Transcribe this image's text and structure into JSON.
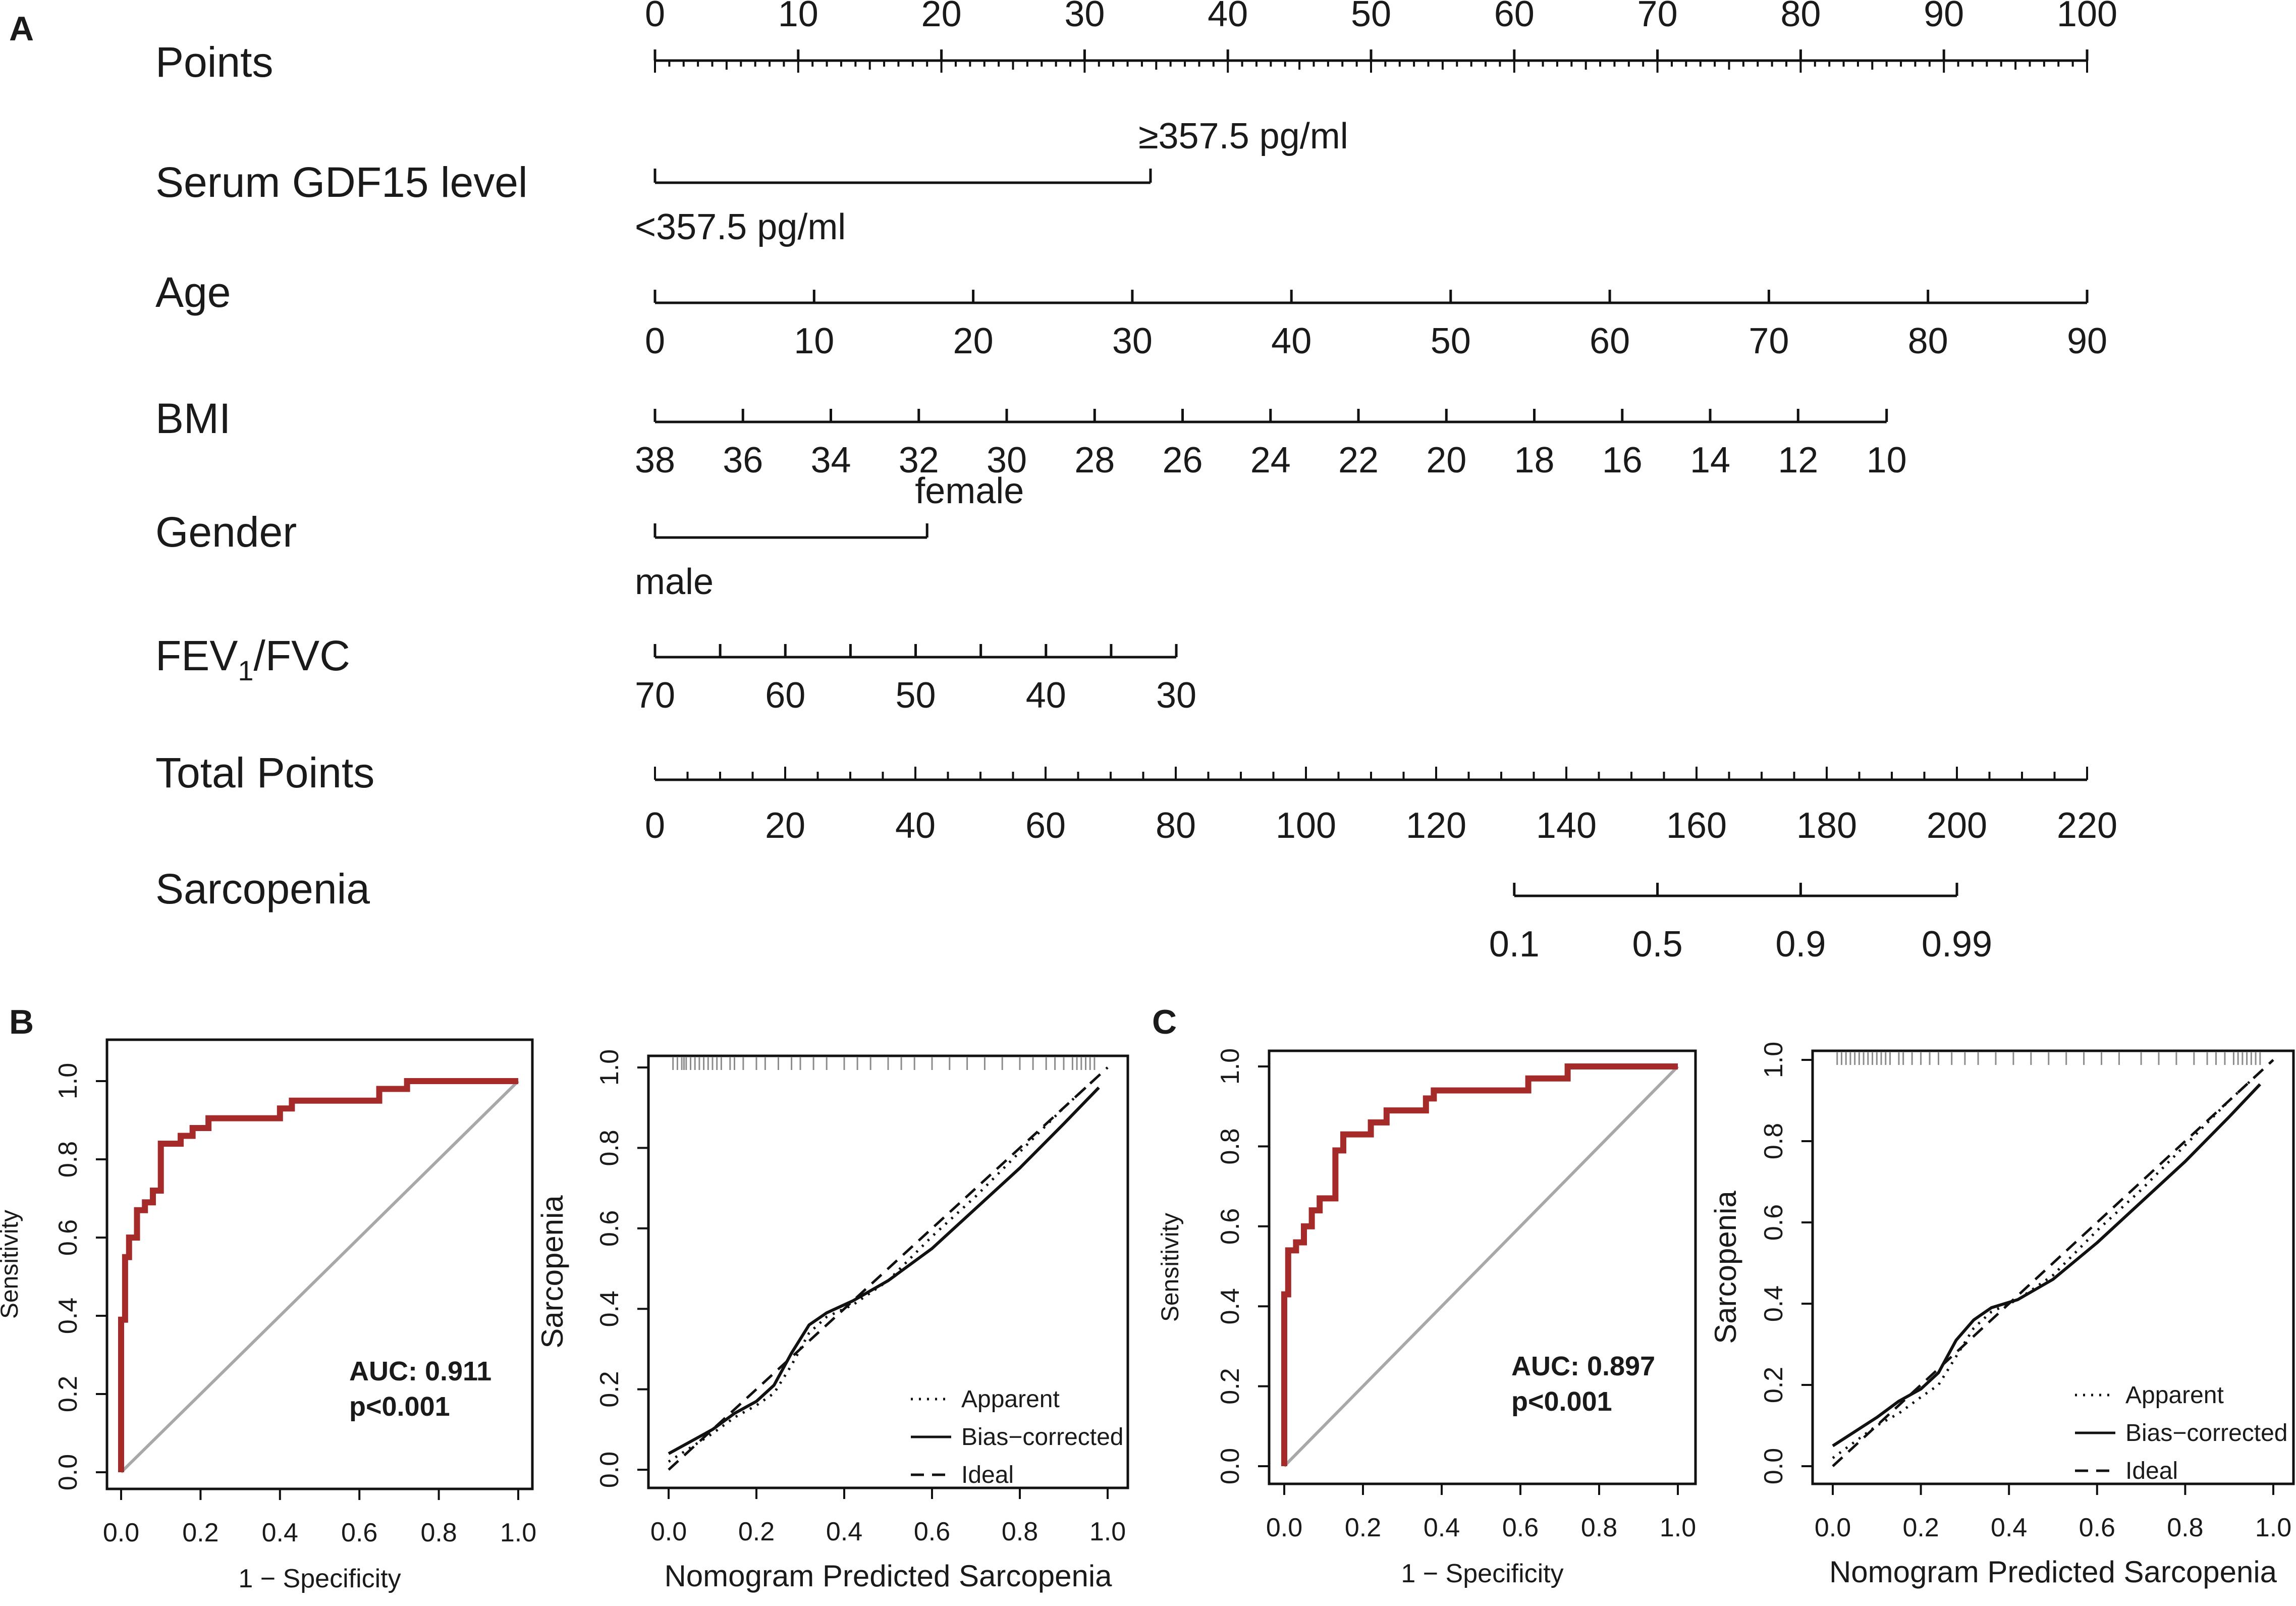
{
  "panel_labels": {
    "a": "A",
    "b": "B",
    "c": "C"
  },
  "colors": {
    "roc": "#a52a2a",
    "diag": "#a8a8a8",
    "ink": "#111111",
    "rug": "#8c8c8c"
  },
  "chart_data": [
    {
      "type": "nomogram",
      "panel": "A",
      "points_scale": {
        "label": "Points",
        "min": 0,
        "max": 100,
        "labels": [
          0,
          10,
          20,
          30,
          40,
          50,
          60,
          70,
          80,
          90,
          100
        ]
      },
      "variables": [
        {
          "label": "Serum GDF15 level",
          "sub": "",
          "suffix": "",
          "style": "categorical",
          "levels": [
            {
              "text": "<357.5 pg/ml",
              "points": 0,
              "pos": "below"
            },
            {
              "text": "≥357.5 pg/ml",
              "points": 34.6,
              "pos": "above"
            }
          ]
        },
        {
          "label": "Age",
          "sub": "",
          "suffix": "",
          "style": "continuous",
          "ticks": [
            {
              "text": "0",
              "points": 0
            },
            {
              "text": "10",
              "points": 11.11
            },
            {
              "text": "20",
              "points": 22.22
            },
            {
              "text": "30",
              "points": 33.33
            },
            {
              "text": "40",
              "points": 44.44
            },
            {
              "text": "50",
              "points": 55.56
            },
            {
              "text": "60",
              "points": 66.67
            },
            {
              "text": "70",
              "points": 77.78
            },
            {
              "text": "80",
              "points": 88.89
            },
            {
              "text": "90",
              "points": 100
            }
          ]
        },
        {
          "label": "BMI",
          "sub": "",
          "suffix": "",
          "style": "continuous",
          "ticks": [
            {
              "text": "38",
              "points": 0
            },
            {
              "text": "36",
              "points": 6.14
            },
            {
              "text": "34",
              "points": 12.28
            },
            {
              "text": "32",
              "points": 18.42
            },
            {
              "text": "30",
              "points": 24.56
            },
            {
              "text": "28",
              "points": 30.7
            },
            {
              "text": "26",
              "points": 36.84
            },
            {
              "text": "24",
              "points": 42.98
            },
            {
              "text": "22",
              "points": 49.12
            },
            {
              "text": "20",
              "points": 55.26
            },
            {
              "text": "18",
              "points": 61.4
            },
            {
              "text": "16",
              "points": 67.54
            },
            {
              "text": "14",
              "points": 73.68
            },
            {
              "text": "12",
              "points": 79.82
            },
            {
              "text": "10",
              "points": 86.0
            }
          ]
        },
        {
          "label": "Gender",
          "sub": "",
          "suffix": "",
          "style": "categorical",
          "levels": [
            {
              "text": "male",
              "points": 0,
              "pos": "below"
            },
            {
              "text": "female",
              "points": 19.0,
              "pos": "above"
            }
          ]
        },
        {
          "label": "FEV",
          "sub": "1",
          "suffix": "/FVC",
          "style": "continuous",
          "ticks": [
            {
              "text": "70",
              "points": 0
            },
            {
              "text": "",
              "points": 4.55
            },
            {
              "text": "60",
              "points": 9.1
            },
            {
              "text": "",
              "points": 13.65
            },
            {
              "text": "50",
              "points": 18.2
            },
            {
              "text": "",
              "points": 22.75
            },
            {
              "text": "40",
              "points": 27.3
            },
            {
              "text": "",
              "points": 31.85
            },
            {
              "text": "30",
              "points": 36.4
            }
          ]
        }
      ],
      "total_points": {
        "label": "Total Points",
        "min": 0,
        "max": 220,
        "labels": [
          0,
          20,
          40,
          60,
          80,
          100,
          120,
          140,
          160,
          180,
          200,
          220
        ]
      },
      "outcome": {
        "label": "Sarcopenia",
        "ticks": [
          {
            "text": "0.1",
            "total": 132
          },
          {
            "text": "0.5",
            "total": 154
          },
          {
            "text": "0.9",
            "total": 176
          },
          {
            "text": "0.99",
            "total": 200
          }
        ]
      }
    },
    {
      "type": "line",
      "panel": "B",
      "subtype": "roc",
      "xlabel": "1 − Specificity",
      "ylabel": "Sensitivity",
      "xlim": [
        0,
        1
      ],
      "ylim": [
        0,
        1
      ],
      "ticks": [
        "0.0",
        "0.2",
        "0.4",
        "0.6",
        "0.8",
        "1.0"
      ],
      "series": [
        {
          "name": "ROC",
          "x": [
            0,
            0,
            0.01,
            0.01,
            0.02,
            0.02,
            0.04,
            0.04,
            0.06,
            0.06,
            0.08,
            0.08,
            0.1,
            0.1,
            0.15,
            0.15,
            0.18,
            0.18,
            0.22,
            0.22,
            0.4,
            0.4,
            0.43,
            0.43,
            0.65,
            0.65,
            0.72,
            0.72,
            1
          ],
          "y": [
            0,
            0.39,
            0.39,
            0.55,
            0.55,
            0.6,
            0.6,
            0.67,
            0.67,
            0.69,
            0.69,
            0.72,
            0.72,
            0.84,
            0.84,
            0.86,
            0.86,
            0.88,
            0.88,
            0.905,
            0.905,
            0.93,
            0.93,
            0.95,
            0.95,
            0.98,
            0.98,
            1,
            1
          ]
        }
      ],
      "annotations": [
        "AUC: 0.911",
        "p<0.001"
      ]
    },
    {
      "type": "line",
      "panel": "B",
      "subtype": "calibration",
      "xlabel": "Nomogram Predicted Sarcopenia",
      "ylabel": "Sarcopenia",
      "xlim": [
        0,
        1
      ],
      "ylim": [
        0,
        1
      ],
      "ticks": [
        "0.0",
        "0.2",
        "0.4",
        "0.6",
        "0.8",
        "1.0"
      ],
      "series": [
        {
          "name": "Apparent",
          "dash": "dotted",
          "x": [
            0,
            0.1,
            0.15,
            0.2,
            0.24,
            0.28,
            0.32,
            0.36,
            0.42,
            0.5,
            0.6,
            0.7,
            0.8,
            0.9,
            0.97
          ],
          "y": [
            0.02,
            0.09,
            0.13,
            0.16,
            0.19,
            0.26,
            0.34,
            0.38,
            0.41,
            0.47,
            0.58,
            0.68,
            0.79,
            0.9,
            0.97
          ]
        },
        {
          "name": "Bias-corrected",
          "dash": "solid",
          "x": [
            0,
            0.1,
            0.15,
            0.2,
            0.24,
            0.28,
            0.32,
            0.36,
            0.42,
            0.5,
            0.6,
            0.7,
            0.8,
            0.9,
            0.98
          ],
          "y": [
            0.04,
            0.1,
            0.14,
            0.17,
            0.21,
            0.29,
            0.36,
            0.39,
            0.42,
            0.47,
            0.55,
            0.65,
            0.75,
            0.86,
            0.95
          ]
        },
        {
          "name": "Ideal",
          "dash": "dashed",
          "x": [
            0,
            1
          ],
          "y": [
            0,
            1
          ]
        }
      ],
      "rug": [
        0.01,
        0.02,
        0.03,
        0.035,
        0.04,
        0.05,
        0.06,
        0.07,
        0.08,
        0.09,
        0.1,
        0.11,
        0.12,
        0.14,
        0.15,
        0.17,
        0.2,
        0.22,
        0.25,
        0.28,
        0.3,
        0.33,
        0.36,
        0.4,
        0.43,
        0.46,
        0.5,
        0.53,
        0.56,
        0.6,
        0.64,
        0.68,
        0.72,
        0.76,
        0.8,
        0.83,
        0.86,
        0.88,
        0.9,
        0.92,
        0.93,
        0.94,
        0.95,
        0.96,
        0.97
      ],
      "legend": [
        "Apparent",
        "Bias−corrected",
        "Ideal"
      ]
    },
    {
      "type": "line",
      "panel": "C",
      "subtype": "roc",
      "xlabel": "1 − Specificity",
      "ylabel": "Sensitivity",
      "xlim": [
        0,
        1
      ],
      "ylim": [
        0,
        1
      ],
      "ticks": [
        "0.0",
        "0.2",
        "0.4",
        "0.6",
        "0.8",
        "1.0"
      ],
      "series": [
        {
          "name": "ROC",
          "x": [
            0,
            0,
            0.01,
            0.01,
            0.03,
            0.03,
            0.05,
            0.05,
            0.07,
            0.07,
            0.09,
            0.09,
            0.13,
            0.13,
            0.15,
            0.15,
            0.22,
            0.22,
            0.26,
            0.26,
            0.3,
            0.3,
            0.36,
            0.36,
            0.38,
            0.38,
            0.62,
            0.62,
            0.72,
            0.72,
            1
          ],
          "y": [
            0,
            0.43,
            0.43,
            0.54,
            0.54,
            0.56,
            0.56,
            0.6,
            0.6,
            0.64,
            0.64,
            0.67,
            0.67,
            0.79,
            0.79,
            0.83,
            0.83,
            0.86,
            0.86,
            0.89,
            0.89,
            0.89,
            0.89,
            0.92,
            0.92,
            0.94,
            0.94,
            0.97,
            0.97,
            1,
            1
          ]
        }
      ],
      "annotations": [
        "AUC: 0.897",
        "p<0.001"
      ]
    },
    {
      "type": "line",
      "panel": "C",
      "subtype": "calibration",
      "xlabel": "Nomogram Predicted Sarcopenia",
      "ylabel": "Sarcopenia",
      "xlim": [
        0,
        1
      ],
      "ylim": [
        0,
        1
      ],
      "ticks": [
        "0.0",
        "0.2",
        "0.4",
        "0.6",
        "0.8",
        "1.0"
      ],
      "series": [
        {
          "name": "Apparent",
          "dash": "dotted",
          "x": [
            0,
            0.1,
            0.15,
            0.2,
            0.24,
            0.28,
            0.32,
            0.36,
            0.42,
            0.5,
            0.6,
            0.7,
            0.8,
            0.9,
            0.97
          ],
          "y": [
            0.02,
            0.1,
            0.13,
            0.17,
            0.2,
            0.27,
            0.34,
            0.38,
            0.41,
            0.47,
            0.58,
            0.68,
            0.79,
            0.9,
            0.97
          ]
        },
        {
          "name": "Bias-corrected",
          "dash": "solid",
          "x": [
            0,
            0.1,
            0.15,
            0.2,
            0.24,
            0.28,
            0.32,
            0.36,
            0.42,
            0.5,
            0.6,
            0.7,
            0.8,
            0.9,
            0.97
          ],
          "y": [
            0.05,
            0.12,
            0.16,
            0.19,
            0.23,
            0.31,
            0.36,
            0.39,
            0.41,
            0.46,
            0.55,
            0.65,
            0.75,
            0.86,
            0.94
          ]
        },
        {
          "name": "Ideal",
          "dash": "dashed",
          "x": [
            0,
            1
          ],
          "y": [
            0,
            1
          ]
        }
      ],
      "rug": [
        0.01,
        0.02,
        0.03,
        0.04,
        0.05,
        0.06,
        0.07,
        0.08,
        0.09,
        0.1,
        0.11,
        0.12,
        0.13,
        0.15,
        0.16,
        0.18,
        0.2,
        0.22,
        0.24,
        0.27,
        0.3,
        0.33,
        0.37,
        0.41,
        0.45,
        0.49,
        0.53,
        0.57,
        0.61,
        0.65,
        0.7,
        0.74,
        0.78,
        0.82,
        0.85,
        0.87,
        0.89,
        0.91,
        0.92,
        0.93,
        0.94,
        0.95,
        0.96,
        0.97
      ],
      "legend": [
        "Apparent",
        "Bias−corrected",
        "Ideal"
      ]
    }
  ]
}
